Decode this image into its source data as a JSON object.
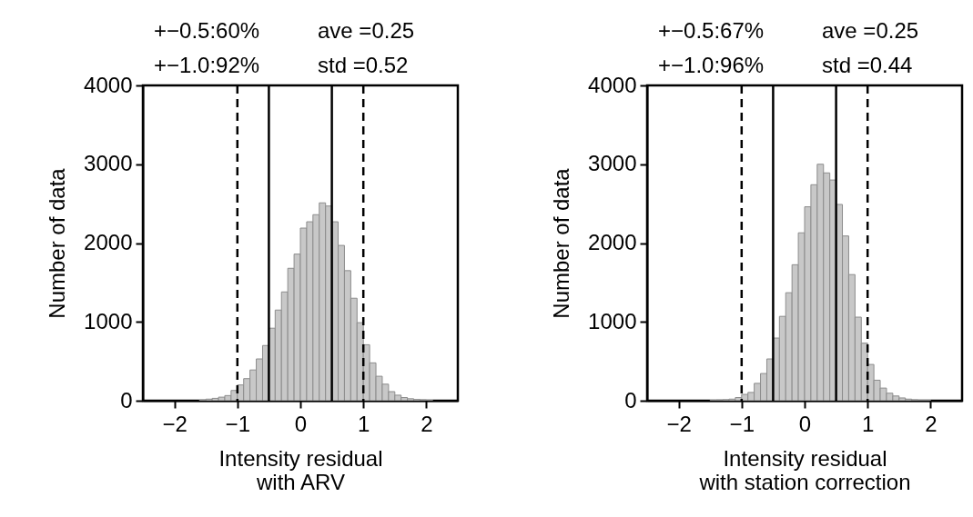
{
  "chart_data": [
    {
      "type": "histogram",
      "xlabel": "Intensity residual\nwith ARV",
      "ylabel": "Number of data",
      "color": "#c8c8c8",
      "bins": [
        -1.6,
        -1.5,
        -1.4,
        -1.3,
        -1.2,
        -1.1,
        -1.0,
        -0.9,
        -0.8,
        -0.7,
        -0.6,
        -0.5,
        -0.4,
        -0.3,
        -0.2,
        -0.1,
        0.0,
        0.1,
        0.2,
        0.3,
        0.4,
        0.5,
        0.6,
        0.7,
        0.8,
        0.9,
        1.0,
        1.1,
        1.2,
        1.3,
        1.4,
        1.5,
        1.6,
        1.7,
        1.8,
        1.9,
        2.0,
        2.1
      ],
      "values": [
        10,
        20,
        30,
        45,
        65,
        130,
        200,
        280,
        390,
        530,
        700,
        920,
        1150,
        1380,
        1680,
        1860,
        2190,
        2270,
        2360,
        2510,
        2470,
        2270,
        1970,
        1650,
        1300,
        990,
        710,
        480,
        310,
        210,
        115,
        70,
        40,
        25,
        15,
        10,
        5
      ],
      "xlim": [
        -2.5,
        2.5
      ],
      "xticks": [
        -2,
        -1,
        0,
        1,
        2
      ],
      "ylim": [
        0,
        4000
      ],
      "yticks": [
        0,
        1000,
        2000,
        3000,
        4000
      ],
      "ref_lines": [
        {
          "axis": "x",
          "value": -1,
          "line_style": "dashed",
          "color": "#000000"
        },
        {
          "axis": "x",
          "value": -0.5,
          "line_style": "solid",
          "color": "#000000"
        },
        {
          "axis": "x",
          "value": 0.5,
          "line_style": "solid",
          "color": "#000000"
        },
        {
          "axis": "x",
          "value": 1,
          "line_style": "dashed",
          "color": "#000000"
        }
      ],
      "annotations": [
        "+−0.5:60%",
        "ave =0.25",
        "+−1.0:92%",
        "std =0.52"
      ],
      "grid": false
    },
    {
      "type": "histogram",
      "xlabel": "Intensity residual\nwith station correction",
      "ylabel": "Number of data",
      "color": "#c8c8c8",
      "bins": [
        -1.5,
        -1.4,
        -1.3,
        -1.2,
        -1.1,
        -1.0,
        -0.9,
        -0.8,
        -0.7,
        -0.6,
        -0.5,
        -0.4,
        -0.3,
        -0.2,
        -0.1,
        0.0,
        0.1,
        0.2,
        0.3,
        0.4,
        0.5,
        0.6,
        0.7,
        0.8,
        0.9,
        1.0,
        1.1,
        1.2,
        1.3,
        1.4,
        1.5,
        1.6,
        1.7,
        1.8,
        1.9,
        2.0
      ],
      "values": [
        5,
        8,
        12,
        20,
        40,
        80,
        105,
        220,
        345,
        530,
        795,
        1070,
        1370,
        1725,
        2130,
        2460,
        2740,
        3000,
        2890,
        2800,
        2490,
        2090,
        1600,
        1060,
        730,
        460,
        260,
        160,
        95,
        60,
        35,
        20,
        10,
        5,
        5
      ],
      "xlim": [
        -2.5,
        2.5
      ],
      "xticks": [
        -2,
        -1,
        0,
        1,
        2
      ],
      "ylim": [
        0,
        4000
      ],
      "yticks": [
        0,
        1000,
        2000,
        3000,
        4000
      ],
      "ref_lines": [
        {
          "axis": "x",
          "value": -1,
          "line_style": "dashed",
          "color": "#000000"
        },
        {
          "axis": "x",
          "value": -0.5,
          "line_style": "solid",
          "color": "#000000"
        },
        {
          "axis": "x",
          "value": 0.5,
          "line_style": "solid",
          "color": "#000000"
        },
        {
          "axis": "x",
          "value": 1,
          "line_style": "dashed",
          "color": "#000000"
        }
      ],
      "annotations": [
        "+−0.5:67%",
        "ave =0.25",
        "+−1.0:96%",
        "std =0.44"
      ],
      "grid": false
    }
  ]
}
